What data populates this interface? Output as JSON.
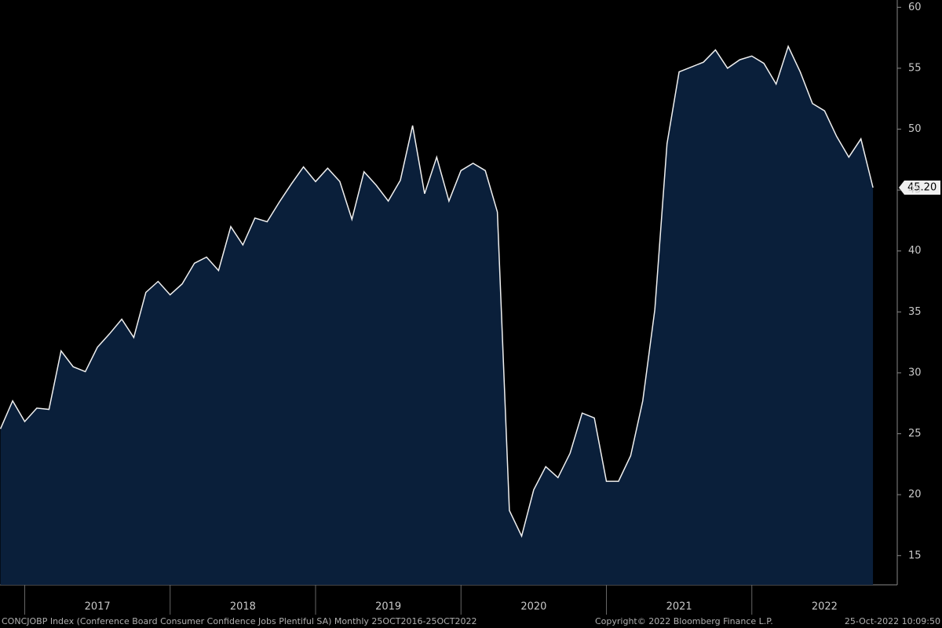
{
  "chart_data": {
    "type": "area",
    "x": [
      2016.833,
      2016.917,
      2017.0,
      2017.083,
      2017.167,
      2017.25,
      2017.333,
      2017.417,
      2017.5,
      2017.583,
      2017.667,
      2017.75,
      2017.833,
      2017.917,
      2018.0,
      2018.083,
      2018.167,
      2018.25,
      2018.333,
      2018.417,
      2018.5,
      2018.583,
      2018.667,
      2018.75,
      2018.833,
      2018.917,
      2019.0,
      2019.083,
      2019.167,
      2019.25,
      2019.333,
      2019.417,
      2019.5,
      2019.583,
      2019.667,
      2019.75,
      2019.833,
      2019.917,
      2020.0,
      2020.083,
      2020.167,
      2020.25,
      2020.333,
      2020.417,
      2020.5,
      2020.583,
      2020.667,
      2020.75,
      2020.833,
      2020.917,
      2021.0,
      2021.083,
      2021.167,
      2021.25,
      2021.333,
      2021.417,
      2021.5,
      2021.583,
      2021.667,
      2021.75,
      2021.833,
      2021.917,
      2022.0,
      2022.083,
      2022.167,
      2022.25,
      2022.333,
      2022.417,
      2022.5,
      2022.583,
      2022.667,
      2022.75,
      2022.833
    ],
    "series": [
      {
        "name": "CONCJOBP Index",
        "color": "#0a1f3a",
        "values": [
          25.4,
          27.7,
          26.0,
          27.1,
          27.0,
          31.8,
          30.5,
          30.1,
          32.1,
          33.2,
          34.4,
          32.9,
          36.6,
          37.5,
          36.4,
          37.3,
          39.0,
          39.5,
          38.4,
          42.0,
          40.5,
          42.7,
          42.4,
          44.0,
          45.5,
          46.9,
          45.7,
          46.8,
          45.7,
          42.6,
          46.5,
          45.4,
          44.1,
          45.8,
          50.3,
          44.7,
          47.7,
          44.1,
          46.6,
          47.2,
          46.6,
          43.2,
          18.7,
          16.6,
          20.4,
          22.3,
          21.4,
          23.4,
          26.7,
          26.3,
          21.1,
          21.1,
          23.2,
          27.7,
          35.2,
          48.8,
          54.7,
          55.1,
          55.5,
          56.5,
          55.0,
          55.7,
          56.0,
          55.4,
          53.7,
          56.8,
          54.7,
          52.1,
          51.5,
          49.4,
          47.7,
          49.2,
          45.2
        ],
        "value_labels": [
          null,
          null,
          null,
          null,
          null,
          null,
          null,
          null,
          null,
          null,
          null,
          null,
          null,
          null,
          null,
          null,
          null,
          null,
          null,
          null,
          null,
          null,
          null,
          null,
          null,
          null,
          null,
          null,
          null,
          null,
          null,
          null,
          null,
          null,
          null,
          null,
          null,
          null,
          null,
          null,
          null,
          null,
          null,
          null,
          null,
          null,
          null,
          null,
          null,
          null,
          null,
          null,
          null,
          null,
          null,
          null,
          null,
          null,
          null,
          null,
          null,
          null,
          null,
          null,
          null,
          null,
          null,
          null,
          null,
          null,
          null,
          null,
          "45.20"
        ]
      }
    ],
    "xlim": [
      2016.83,
      2023.0
    ],
    "xticks": [
      2017,
      2018,
      2019,
      2020,
      2021,
      2022
    ],
    "ylim": [
      12.6,
      60.6
    ],
    "yticks": [
      15,
      20,
      25,
      30,
      35,
      40,
      45,
      50,
      55,
      60
    ],
    "footer": [
      "CONCJOBP Index (Conference Board Consumer Confidence Jobs Plentiful SA)  Monthly 25OCT2016-25OCT2022",
      "Copyright© 2022 Bloomberg Finance L.P.",
      "25-Oct-2022 10:09:50"
    ]
  }
}
